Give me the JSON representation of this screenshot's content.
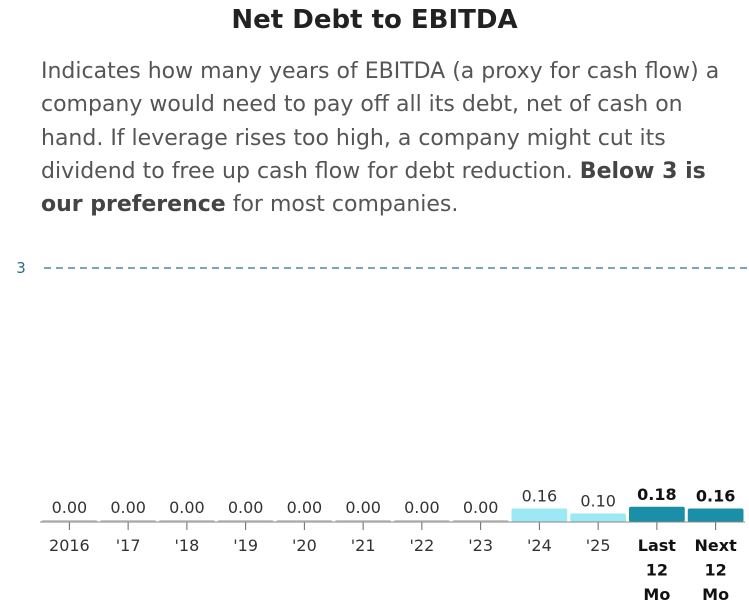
{
  "header": {
    "title": "Net Debt to EBITDA",
    "desc_plain": "Indicates how many years of EBITDA (a proxy for cash flow) a company would need to pay off all its debt, net of cash on hand. If leverage rises too high, a company might cut its dividend to free up cash flow for debt reduction. ",
    "desc_bold": "Below 3 is our preference",
    "desc_end": " for most companies."
  },
  "colors": {
    "past": "#c8c8c8",
    "estimate": "#9de8f5",
    "current": "#1b8fa8",
    "reference": "#2a6f84"
  },
  "chart_data": {
    "type": "bar",
    "title": "Net Debt to EBITDA",
    "xlabel": "",
    "ylabel": "",
    "ylim": [
      0,
      3
    ],
    "reference_line": {
      "value": 3,
      "label": "3",
      "style": "dashed"
    },
    "categories": [
      "2016",
      "'17",
      "'18",
      "'19",
      "'20",
      "'21",
      "'22",
      "'23",
      "'24",
      "'25",
      "Last 12 Mo",
      "Next 12 Mo"
    ],
    "values": [
      0.0,
      0.0,
      0.0,
      0.0,
      0.0,
      0.0,
      0.0,
      0.0,
      0.16,
      0.1,
      0.18,
      0.16
    ],
    "value_labels": [
      "0.00",
      "0.00",
      "0.00",
      "0.00",
      "0.00",
      "0.00",
      "0.00",
      "0.00",
      "0.16",
      "0.10",
      "0.18",
      "0.16"
    ],
    "bar_kind": [
      "past",
      "past",
      "past",
      "past",
      "past",
      "past",
      "past",
      "past",
      "estimate",
      "estimate",
      "current",
      "current"
    ],
    "bold": [
      false,
      false,
      false,
      false,
      false,
      false,
      false,
      false,
      false,
      false,
      true,
      true
    ]
  }
}
